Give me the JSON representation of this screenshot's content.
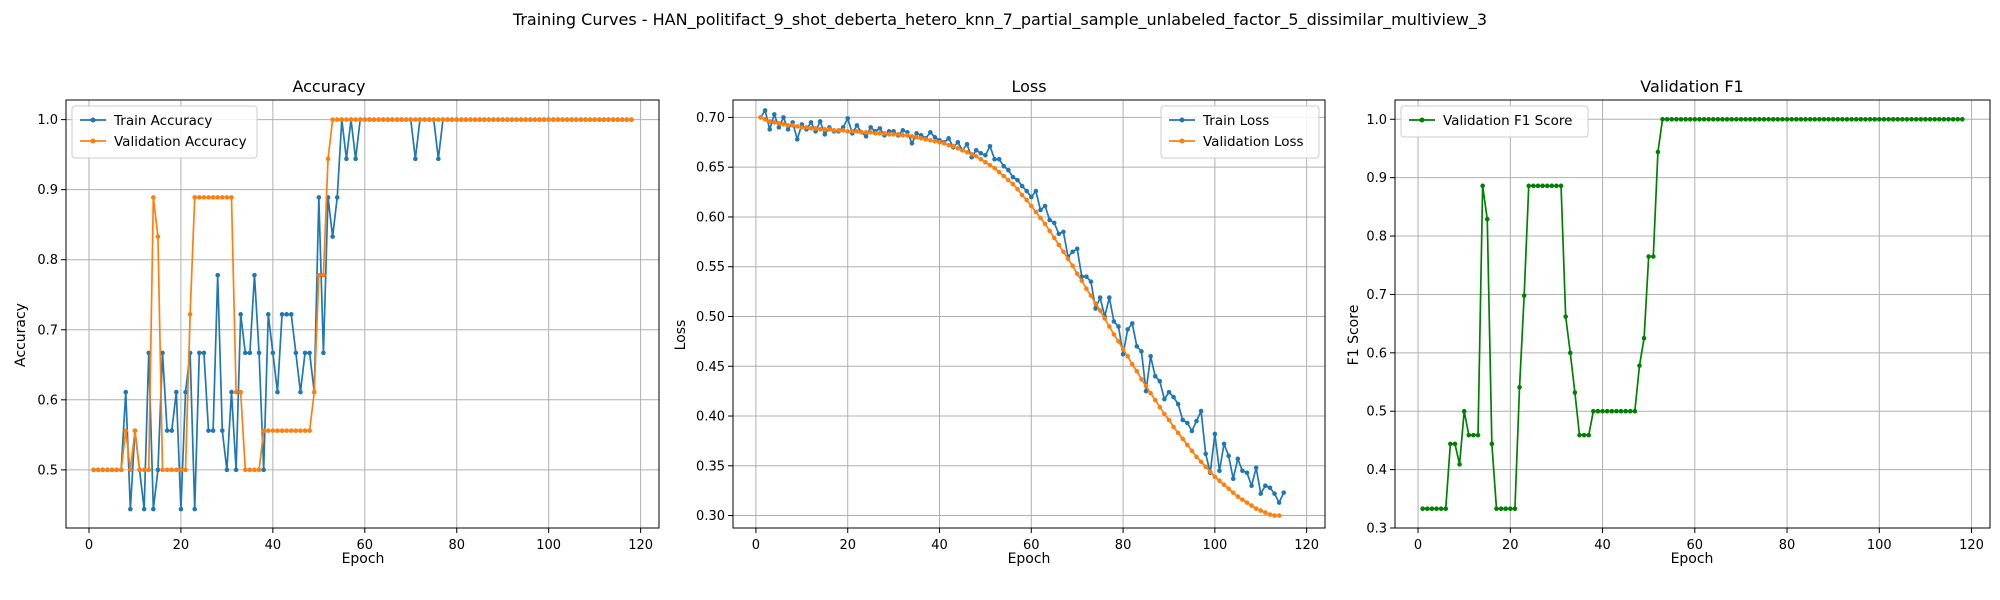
{
  "figure": {
    "suptitle": "Training Curves - HAN_politifact_9_shot_deberta_hetero_knn_7_partial_sample_unlabeled_factor_5_dissimilar_multiview_3"
  },
  "colors": {
    "train": "#1f77b4",
    "val": "#ff7f0e",
    "f1": "#008000",
    "grid": "#b0b0b0"
  },
  "chart_data": [
    {
      "type": "line",
      "title": "Accuracy",
      "xlabel": "Epoch",
      "ylabel": "Accuracy",
      "xlim": [
        -5,
        124
      ],
      "ylim": [
        0.417,
        1.028
      ],
      "xticks": [
        0,
        20,
        40,
        60,
        80,
        100,
        120
      ],
      "yticks": [
        0.5,
        0.6,
        0.7,
        0.8,
        0.9,
        1.0
      ],
      "ytick_labels": [
        "0.5",
        "0.6",
        "0.7",
        "0.8",
        "0.9",
        "1.0"
      ],
      "grid": true,
      "legend_position": "upper-left",
      "series": [
        {
          "name": "Train Accuracy",
          "color_key": "train",
          "values": [
            0.5,
            0.5,
            0.5,
            0.5,
            0.5,
            0.5,
            0.5,
            0.611,
            0.444,
            0.556,
            0.5,
            0.444,
            0.667,
            0.444,
            0.5,
            0.667,
            0.556,
            0.556,
            0.611,
            0.444,
            0.611,
            0.667,
            0.444,
            0.667,
            0.667,
            0.556,
            0.556,
            0.778,
            0.556,
            0.5,
            0.611,
            0.5,
            0.722,
            0.667,
            0.667,
            0.778,
            0.667,
            0.5,
            0.722,
            0.667,
            0.611,
            0.722,
            0.722,
            0.722,
            0.667,
            0.611,
            0.667,
            0.667,
            0.611,
            0.889,
            0.667,
            0.889,
            0.833,
            0.889,
            1.0,
            0.944,
            1.0,
            0.944,
            1.0,
            1.0,
            1.0,
            1.0,
            1.0,
            1.0,
            1.0,
            1.0,
            1.0,
            1.0,
            1.0,
            1.0,
            0.944,
            1.0,
            1.0,
            1.0,
            1.0,
            0.944,
            1.0,
            1.0,
            1.0,
            1.0,
            1.0,
            1.0,
            1.0,
            1.0,
            1.0,
            1.0,
            1.0,
            1.0,
            1.0,
            1.0,
            1.0,
            1.0,
            1.0,
            1.0,
            1.0,
            1.0,
            1.0,
            1.0,
            1.0,
            1.0,
            1.0,
            1.0,
            1.0,
            1.0,
            1.0,
            1.0,
            1.0,
            1.0,
            1.0,
            1.0,
            1.0,
            1.0,
            1.0,
            1.0,
            1.0,
            1.0,
            1.0,
            1.0
          ]
        },
        {
          "name": "Validation Accuracy",
          "color_key": "val",
          "values": [
            0.5,
            0.5,
            0.5,
            0.5,
            0.5,
            0.5,
            0.5,
            0.556,
            0.5,
            0.556,
            0.5,
            0.5,
            0.5,
            0.889,
            0.833,
            0.5,
            0.5,
            0.5,
            0.5,
            0.5,
            0.5,
            0.722,
            0.889,
            0.889,
            0.889,
            0.889,
            0.889,
            0.889,
            0.889,
            0.889,
            0.889,
            0.611,
            0.611,
            0.5,
            0.5,
            0.5,
            0.5,
            0.556,
            0.556,
            0.556,
            0.556,
            0.556,
            0.556,
            0.556,
            0.556,
            0.556,
            0.556,
            0.556,
            0.611,
            0.778,
            0.778,
            0.944,
            1.0,
            1.0,
            1.0,
            1.0,
            1.0,
            1.0,
            1.0,
            1.0,
            1.0,
            1.0,
            1.0,
            1.0,
            1.0,
            1.0,
            1.0,
            1.0,
            1.0,
            1.0,
            1.0,
            1.0,
            1.0,
            1.0,
            1.0,
            1.0,
            1.0,
            1.0,
            1.0,
            1.0,
            1.0,
            1.0,
            1.0,
            1.0,
            1.0,
            1.0,
            1.0,
            1.0,
            1.0,
            1.0,
            1.0,
            1.0,
            1.0,
            1.0,
            1.0,
            1.0,
            1.0,
            1.0,
            1.0,
            1.0,
            1.0,
            1.0,
            1.0,
            1.0,
            1.0,
            1.0,
            1.0,
            1.0,
            1.0,
            1.0,
            1.0,
            1.0,
            1.0,
            1.0,
            1.0,
            1.0,
            1.0,
            1.0
          ]
        }
      ]
    },
    {
      "type": "line",
      "title": "Loss",
      "xlabel": "Epoch",
      "ylabel": "Loss",
      "xlim": [
        -5,
        124
      ],
      "ylim": [
        0.2875,
        0.7175
      ],
      "xticks": [
        0,
        20,
        40,
        60,
        80,
        100,
        120
      ],
      "yticks": [
        0.3,
        0.35,
        0.4,
        0.45,
        0.5,
        0.55,
        0.6,
        0.65,
        0.7
      ],
      "ytick_labels": [
        "0.30",
        "0.35",
        "0.40",
        "0.45",
        "0.50",
        "0.55",
        "0.60",
        "0.65",
        "0.70"
      ],
      "grid": true,
      "legend_position": "upper-right",
      "series": [
        {
          "name": "Train Loss",
          "color_key": "train",
          "values": [
            0.7,
            0.707,
            0.688,
            0.703,
            0.69,
            0.7,
            0.688,
            0.695,
            0.678,
            0.693,
            0.688,
            0.695,
            0.686,
            0.696,
            0.683,
            0.69,
            0.686,
            0.686,
            0.69,
            0.699,
            0.684,
            0.692,
            0.685,
            0.681,
            0.69,
            0.686,
            0.689,
            0.682,
            0.686,
            0.686,
            0.682,
            0.687,
            0.685,
            0.674,
            0.684,
            0.682,
            0.679,
            0.685,
            0.68,
            0.677,
            0.675,
            0.679,
            0.67,
            0.675,
            0.667,
            0.673,
            0.66,
            0.667,
            0.664,
            0.662,
            0.671,
            0.658,
            0.658,
            0.651,
            0.647,
            0.64,
            0.637,
            0.631,
            0.626,
            0.62,
            0.626,
            0.607,
            0.611,
            0.597,
            0.594,
            0.583,
            0.585,
            0.56,
            0.565,
            0.568,
            0.54,
            0.54,
            0.535,
            0.508,
            0.519,
            0.5,
            0.519,
            0.495,
            0.49,
            0.462,
            0.487,
            0.493,
            0.47,
            0.465,
            0.425,
            0.46,
            0.44,
            0.435,
            0.417,
            0.424,
            0.419,
            0.412,
            0.396,
            0.393,
            0.385,
            0.395,
            0.405,
            0.362,
            0.343,
            0.382,
            0.345,
            0.372,
            0.36,
            0.337,
            0.357,
            0.345,
            0.343,
            0.33,
            0.348,
            0.322,
            0.33,
            0.328,
            0.322,
            0.313,
            0.323
          ]
        },
        {
          "name": "Validation Loss",
          "color_key": "val",
          "values": [
            0.7,
            0.698,
            0.696,
            0.695,
            0.694,
            0.693,
            0.692,
            0.692,
            0.691,
            0.69,
            0.69,
            0.689,
            0.689,
            0.688,
            0.688,
            0.688,
            0.687,
            0.687,
            0.687,
            0.686,
            0.686,
            0.686,
            0.685,
            0.685,
            0.685,
            0.684,
            0.684,
            0.684,
            0.683,
            0.683,
            0.683,
            0.682,
            0.682,
            0.681,
            0.68,
            0.679,
            0.678,
            0.677,
            0.676,
            0.675,
            0.674,
            0.672,
            0.671,
            0.669,
            0.667,
            0.665,
            0.663,
            0.661,
            0.658,
            0.655,
            0.652,
            0.649,
            0.645,
            0.641,
            0.637,
            0.633,
            0.628,
            0.622,
            0.617,
            0.611,
            0.605,
            0.599,
            0.593,
            0.586,
            0.579,
            0.572,
            0.565,
            0.558,
            0.551,
            0.543,
            0.536,
            0.528,
            0.521,
            0.513,
            0.506,
            0.498,
            0.49,
            0.482,
            0.475,
            0.467,
            0.46,
            0.452,
            0.445,
            0.437,
            0.43,
            0.423,
            0.416,
            0.409,
            0.402,
            0.396,
            0.389,
            0.383,
            0.377,
            0.371,
            0.365,
            0.359,
            0.354,
            0.349,
            0.344,
            0.339,
            0.335,
            0.331,
            0.327,
            0.323,
            0.319,
            0.316,
            0.313,
            0.31,
            0.307,
            0.305,
            0.303,
            0.301,
            0.3,
            0.3
          ]
        }
      ]
    },
    {
      "type": "line",
      "title": "Validation F1",
      "xlabel": "Epoch",
      "ylabel": "F1 Score",
      "xlim": [
        -5,
        124
      ],
      "ylim": [
        0.3,
        1.033
      ],
      "xticks": [
        0,
        20,
        40,
        60,
        80,
        100,
        120
      ],
      "yticks": [
        0.3,
        0.4,
        0.5,
        0.6,
        0.7,
        0.8,
        0.9,
        1.0
      ],
      "ytick_labels": [
        "0.3",
        "0.4",
        "0.5",
        "0.6",
        "0.7",
        "0.8",
        "0.9",
        "1.0"
      ],
      "grid": true,
      "legend_position": "upper-left",
      "series": [
        {
          "name": "Validation F1 Score",
          "color_key": "f1",
          "values": [
            0.333,
            0.333,
            0.333,
            0.333,
            0.333,
            0.333,
            0.444,
            0.444,
            0.409,
            0.5,
            0.459,
            0.459,
            0.459,
            0.886,
            0.829,
            0.444,
            0.333,
            0.333,
            0.333,
            0.333,
            0.333,
            0.541,
            0.698,
            0.886,
            0.886,
            0.886,
            0.886,
            0.886,
            0.886,
            0.886,
            0.886,
            0.662,
            0.6,
            0.532,
            0.459,
            0.459,
            0.459,
            0.5,
            0.5,
            0.5,
            0.5,
            0.5,
            0.5,
            0.5,
            0.5,
            0.5,
            0.5,
            0.578,
            0.625,
            0.765,
            0.765,
            0.944,
            1.0,
            1.0,
            1.0,
            1.0,
            1.0,
            1.0,
            1.0,
            1.0,
            1.0,
            1.0,
            1.0,
            1.0,
            1.0,
            1.0,
            1.0,
            1.0,
            1.0,
            1.0,
            1.0,
            1.0,
            1.0,
            1.0,
            1.0,
            1.0,
            1.0,
            1.0,
            1.0,
            1.0,
            1.0,
            1.0,
            1.0,
            1.0,
            1.0,
            1.0,
            1.0,
            1.0,
            1.0,
            1.0,
            1.0,
            1.0,
            1.0,
            1.0,
            1.0,
            1.0,
            1.0,
            1.0,
            1.0,
            1.0,
            1.0,
            1.0,
            1.0,
            1.0,
            1.0,
            1.0,
            1.0,
            1.0,
            1.0,
            1.0,
            1.0,
            1.0,
            1.0,
            1.0,
            1.0,
            1.0,
            1.0,
            1.0
          ]
        }
      ]
    }
  ]
}
